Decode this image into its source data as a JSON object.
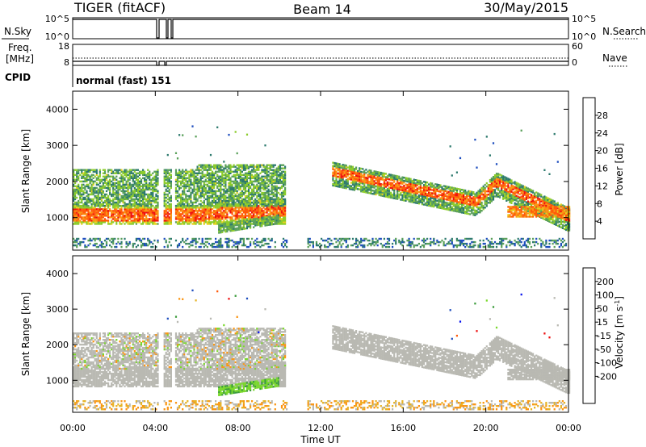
{
  "header": {
    "radar": "TIGER (fitACF)",
    "beam": "Beam 14",
    "date": "30/May/2015"
  },
  "top_panels": {
    "nsky_label": "N.Sky",
    "nsky_ticks": [
      "10^5",
      "10^0"
    ],
    "nsearch_label": "N.Search",
    "nsearch_ticks": [
      "10^5",
      "10^0"
    ],
    "freq_label_1": "Freq.",
    "freq_label_2": "[MHz]",
    "freq_ticks": [
      "18",
      "8"
    ],
    "nave_label": "Nave",
    "nave_ticks": [
      "60",
      "0"
    ],
    "cpid_label": "CPID",
    "cpid_text": "normal (fast) 151"
  },
  "colors": {
    "power": [
      "#0a14ee",
      "#1e4ebe",
      "#2d7a6e",
      "#5aa05a",
      "#8ccc2c",
      "#e6d21e",
      "#fa9614",
      "#ff5a0a",
      "#ee1010"
    ],
    "velocity": [
      "#ee1010",
      "#ff5a0a",
      "#fa9614",
      "#e6b428",
      "#b9b9b2",
      "#b9b9b2",
      "#7ad82c",
      "#3c9c3c",
      "#1e4ebe",
      "#0a14ee"
    ]
  },
  "chart_data": [
    {
      "type": "heatmap",
      "name": "power",
      "ylabel": "Slant Range [km]",
      "ylim": [
        100,
        4500
      ],
      "yticks": [
        "1000",
        "2000",
        "3000",
        "4000"
      ],
      "xlim_hours": [
        0,
        24
      ],
      "colorbar": {
        "label": "Power [dB]",
        "ticks": [
          "4",
          "8",
          "12",
          "16",
          "20",
          "24",
          "28"
        ],
        "range": [
          0,
          32
        ]
      },
      "features": [
        {
          "label": "E-region / near-range band",
          "t": [
            0,
            10.3
          ],
          "range_km": [
            800,
            1300
          ],
          "power_db": 26
        },
        {
          "label": "F-region band",
          "t": [
            0,
            10.3
          ],
          "range_km": [
            1300,
            2200
          ],
          "power_db": 14
        },
        {
          "label": "Ionospheric trace",
          "t": [
            13,
            24
          ],
          "range_km": [
            1000,
            2300
          ],
          "power_db": 22
        },
        {
          "label": "Ground scatter low",
          "t": [
            0,
            24
          ],
          "range_km": [
            180,
            400
          ],
          "power_db": 8
        }
      ]
    },
    {
      "type": "heatmap",
      "name": "velocity",
      "ylabel": "Slant Range [km]",
      "ylim": [
        100,
        4500
      ],
      "yticks": [
        "1000",
        "2000",
        "3000",
        "4000"
      ],
      "xlim_hours": [
        0,
        24
      ],
      "xticks": [
        "00:00",
        "04:00",
        "08:00",
        "12:00",
        "16:00",
        "20:00",
        "00:00"
      ],
      "xlabel": "Time UT",
      "colorbar": {
        "label": "Velocity [m s",
        "label_sup": "-1",
        "label_end": "]",
        "ticks": [
          "200",
          "100",
          "50",
          "15",
          "-15",
          "-50",
          "-100",
          "-200"
        ]
      }
    }
  ]
}
